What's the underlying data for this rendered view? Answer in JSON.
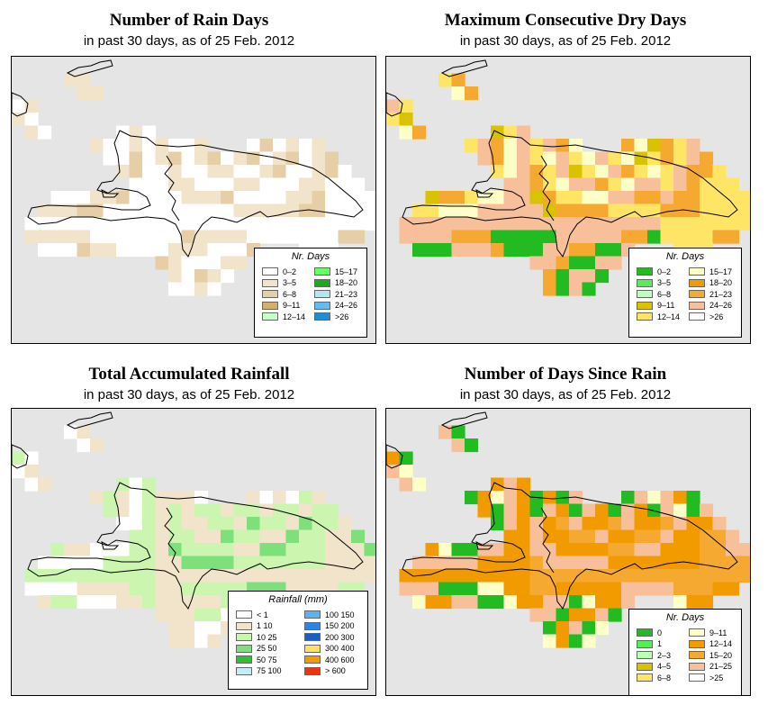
{
  "panels": [
    {
      "id": "rain-days",
      "title": "Number of Rain Days",
      "subtitle": "in past 30 days, as of  25 Feb. 2012",
      "legend": {
        "title": "Nr. Days",
        "items": [
          {
            "label": "0–2",
            "color": "#ffffff"
          },
          {
            "label": "3–5",
            "color": "#f2e3cb"
          },
          {
            "label": "6–8",
            "color": "#e6cfa6"
          },
          {
            "label": "9–11",
            "color": "#d4b06a"
          },
          {
            "label": "12–14",
            "color": "#ccffcc"
          },
          {
            "label": "15–17",
            "color": "#66ff66"
          },
          {
            "label": "18–20",
            "color": "#1ea81e"
          },
          {
            "label": "21–23",
            "color": "#b3e6f5"
          },
          {
            "label": "24–26",
            "color": "#66bbee"
          },
          {
            "label": ">26",
            "color": "#1e8fd6"
          }
        ]
      }
    },
    {
      "id": "dry-days",
      "title": "Maximum Consecutive Dry Days",
      "subtitle": "in past 30 days, as of  25 Feb. 2012",
      "legend": {
        "title": "Nr. Days",
        "items": [
          {
            "label": "0–2",
            "color": "#22bb22"
          },
          {
            "label": "3–5",
            "color": "#55ee55"
          },
          {
            "label": "6–8",
            "color": "#bbffbb"
          },
          {
            "label": "9–11",
            "color": "#d9c200"
          },
          {
            "label": "12–14",
            "color": "#ffe566"
          },
          {
            "label": "15–17",
            "color": "#ffffc8"
          },
          {
            "label": "18–20",
            "color": "#f29b00"
          },
          {
            "label": "21–23",
            "color": "#f6a930"
          },
          {
            "label": "24–26",
            "color": "#f8c09a"
          },
          {
            "label": ">26",
            "color": "#ffffff"
          }
        ]
      }
    },
    {
      "id": "rainfall",
      "title": "Total Accumulated Rainfall",
      "subtitle": "in past 30 days, as of  25 Feb. 2012",
      "legend": {
        "title": "Rainfall (mm)",
        "items": [
          {
            "label": "< 1",
            "color": "#ffffff"
          },
          {
            "label": "1     10",
            "color": "#f2e3cb"
          },
          {
            "label": "10    25",
            "color": "#ccf5b0"
          },
          {
            "label": "25    50",
            "color": "#7ee07a"
          },
          {
            "label": "50    75",
            "color": "#2fc02f"
          },
          {
            "label": "75   100",
            "color": "#c6ecf7"
          },
          {
            "label": "100  150",
            "color": "#5fb2ef"
          },
          {
            "label": "150  200",
            "color": "#2b85e6"
          },
          {
            "label": "200  300",
            "color": "#1461cc"
          },
          {
            "label": "300  400",
            "color": "#ffe066"
          },
          {
            "label": "400  600",
            "color": "#f29b00"
          },
          {
            "label": "> 600",
            "color": "#ee3311"
          }
        ]
      }
    },
    {
      "id": "since-rain",
      "title": "Number of Days Since Rain",
      "subtitle": "in past 30 days, as of  25 Feb. 2012",
      "legend": {
        "title": "Nr. Days",
        "items": [
          {
            "label": "0",
            "color": "#22bb22"
          },
          {
            "label": "1",
            "color": "#55ee55"
          },
          {
            "label": "2–3",
            "color": "#bbffbb"
          },
          {
            "label": "4–5",
            "color": "#d9c200"
          },
          {
            "label": "6–8",
            "color": "#ffe566"
          },
          {
            "label": "9–11",
            "color": "#ffffc8"
          },
          {
            "label": "12–14",
            "color": "#f29b00"
          },
          {
            "label": "15–20",
            "color": "#f6a930"
          },
          {
            "label": "21–25",
            "color": "#f8c09a"
          },
          {
            "label": ">25",
            "color": "#ffffff"
          }
        ]
      }
    }
  ]
}
